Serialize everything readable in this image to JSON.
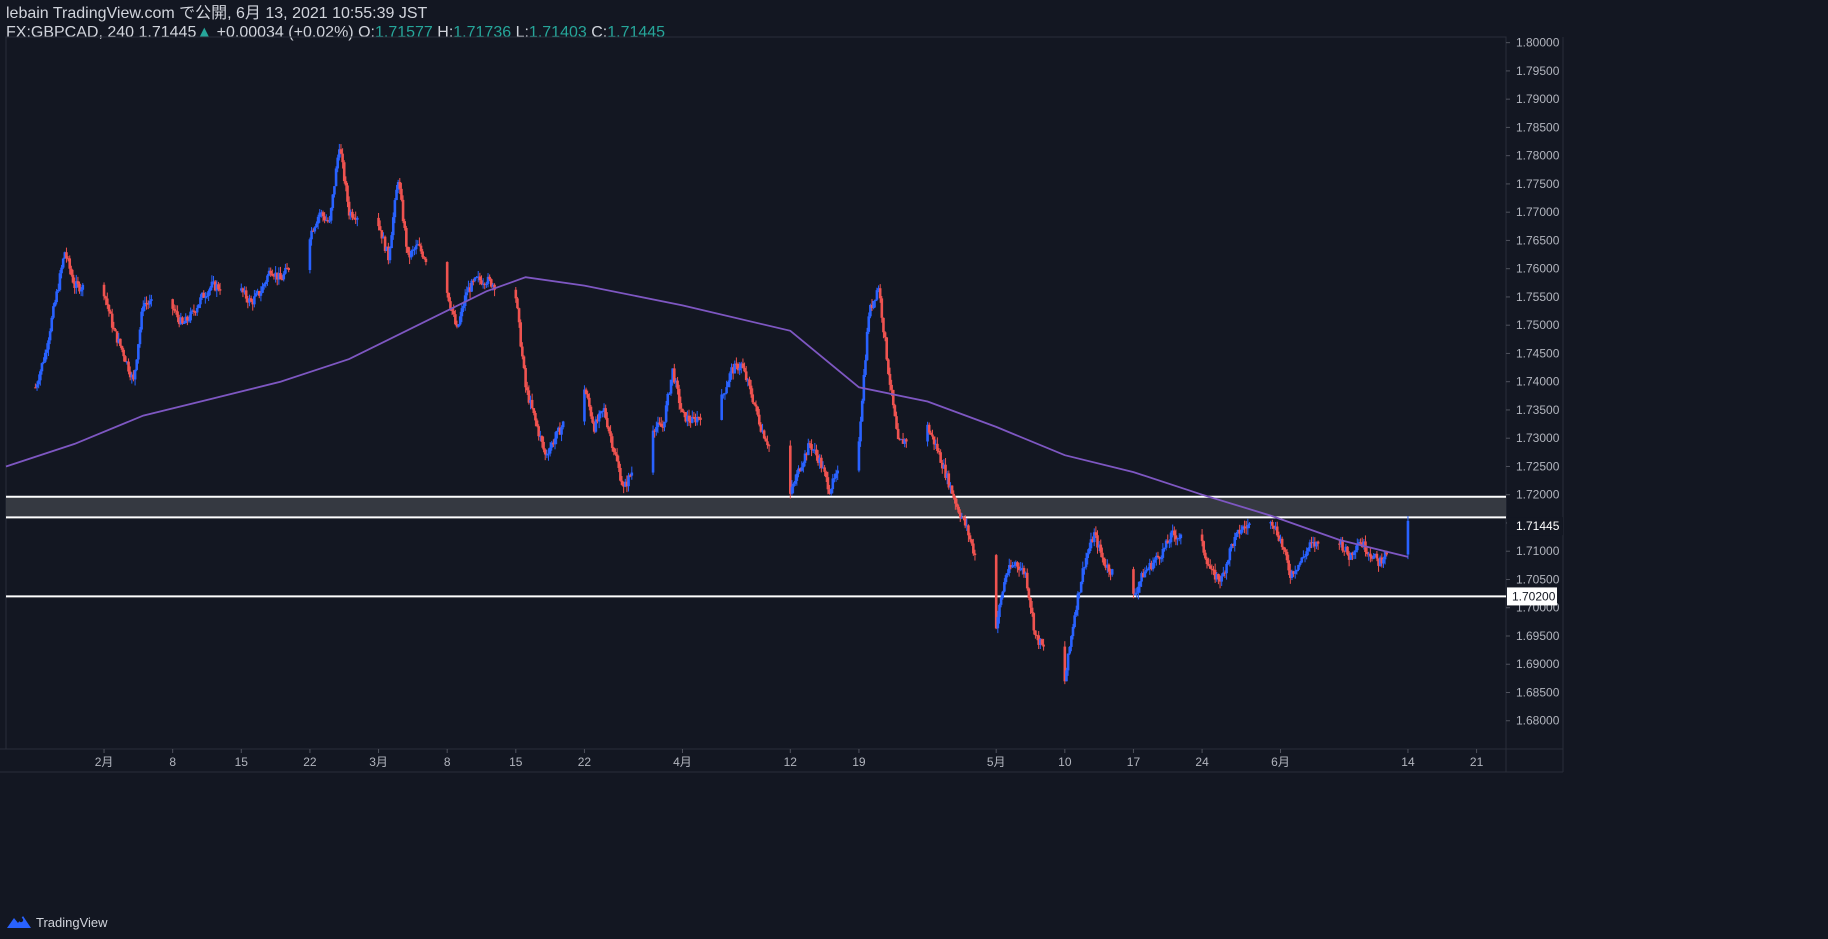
{
  "header": {
    "line1": "lebain TradingView.com で公開, 6月 13, 2021 10:55:39 JST",
    "symbol": "FX:GBPCAD, 240",
    "last": "1.71445",
    "up_arrow": "▲",
    "change": "+0.00034 (+0.02%)",
    "o_label": "O:",
    "o_value": "1.71577",
    "h_label": "H:",
    "h_value": "1.71736",
    "l_label": "L:",
    "l_value": "1.71403",
    "c_label": "C:",
    "c_value": "1.71445"
  },
  "footer": {
    "brand": "TradingView",
    "logo_icon": "tradingview-logo-icon"
  },
  "colors": {
    "background": "#131722",
    "up": "#2962ff",
    "down": "#ef5350",
    "ma": "#7e57c2",
    "level_line": "#ffffff",
    "zone_fill": "#3a3d45",
    "axis_text": "#b2b5be",
    "grid_border": "#2a2e39"
  },
  "chart_data": {
    "type": "candlestick",
    "ylim": [
      1.675,
      1.801
    ],
    "y_ticks": [
      "1.80000",
      "1.79500",
      "1.79000",
      "1.78500",
      "1.78000",
      "1.77500",
      "1.77000",
      "1.76500",
      "1.76000",
      "1.75500",
      "1.75000",
      "1.74500",
      "1.74000",
      "1.73500",
      "1.73000",
      "1.72500",
      "1.72000",
      "1.71500",
      "1.71000",
      "1.70500",
      "1.70000",
      "1.69500",
      "1.69000",
      "1.68500",
      "1.68000"
    ],
    "x_range": [
      "2021-01-22",
      "2021-06-24"
    ],
    "x_ticks": [
      {
        "date": "2021-02-01",
        "label": "2月"
      },
      {
        "date": "2021-02-08",
        "label": "8"
      },
      {
        "date": "2021-02-15",
        "label": "15"
      },
      {
        "date": "2021-02-22",
        "label": "22"
      },
      {
        "date": "2021-03-01",
        "label": "3月"
      },
      {
        "date": "2021-03-08",
        "label": "8"
      },
      {
        "date": "2021-03-15",
        "label": "15"
      },
      {
        "date": "2021-03-22",
        "label": "22"
      },
      {
        "date": "2021-04-01",
        "label": "4月"
      },
      {
        "date": "2021-04-12",
        "label": "12"
      },
      {
        "date": "2021-04-19",
        "label": "19"
      },
      {
        "date": "2021-05-03",
        "label": "5月"
      },
      {
        "date": "2021-05-10",
        "label": "10"
      },
      {
        "date": "2021-05-17",
        "label": "17"
      },
      {
        "date": "2021-05-24",
        "label": "24"
      },
      {
        "date": "2021-06-01",
        "label": "6月"
      },
      {
        "date": "2021-06-14",
        "label": "14"
      },
      {
        "date": "2021-06-21",
        "label": "21"
      }
    ],
    "price_path": [
      [
        "2021-01-25",
        1.739
      ],
      [
        "2021-01-26",
        1.745
      ],
      [
        "2021-01-27",
        1.754
      ],
      [
        "2021-01-28",
        1.763
      ],
      [
        "2021-01-29",
        1.757
      ],
      [
        "2021-02-01",
        1.756
      ],
      [
        "2021-02-02",
        1.749
      ],
      [
        "2021-02-03",
        1.745
      ],
      [
        "2021-02-04",
        1.74
      ],
      [
        "2021-02-05",
        1.754
      ],
      [
        "2021-02-08",
        1.753
      ],
      [
        "2021-02-09",
        1.75
      ],
      [
        "2021-02-10",
        1.752
      ],
      [
        "2021-02-11",
        1.755
      ],
      [
        "2021-02-12",
        1.757
      ],
      [
        "2021-02-15",
        1.756
      ],
      [
        "2021-02-16",
        1.754
      ],
      [
        "2021-02-17",
        1.756
      ],
      [
        "2021-02-18",
        1.76
      ],
      [
        "2021-02-19",
        1.758
      ],
      [
        "2021-02-22",
        1.766
      ],
      [
        "2021-02-23",
        1.77
      ],
      [
        "2021-02-24",
        1.768
      ],
      [
        "2021-02-25",
        1.782
      ],
      [
        "2021-02-26",
        1.77
      ],
      [
        "2021-03-01",
        1.768
      ],
      [
        "2021-03-02",
        1.762
      ],
      [
        "2021-03-03",
        1.776
      ],
      [
        "2021-03-04",
        1.762
      ],
      [
        "2021-03-05",
        1.764
      ],
      [
        "2021-03-08",
        1.756
      ],
      [
        "2021-03-09",
        1.749
      ],
      [
        "2021-03-10",
        1.756
      ],
      [
        "2021-03-11",
        1.758
      ],
      [
        "2021-03-12",
        1.758
      ],
      [
        "2021-03-15",
        1.755
      ],
      [
        "2021-03-16",
        1.739
      ],
      [
        "2021-03-17",
        1.733
      ],
      [
        "2021-03-18",
        1.727
      ],
      [
        "2021-03-19",
        1.73
      ],
      [
        "2021-03-22",
        1.739
      ],
      [
        "2021-03-23",
        1.732
      ],
      [
        "2021-03-24",
        1.735
      ],
      [
        "2021-03-25",
        1.728
      ],
      [
        "2021-03-26",
        1.721
      ],
      [
        "2021-03-29",
        1.732
      ],
      [
        "2021-03-30",
        1.732
      ],
      [
        "2021-03-31",
        1.742
      ],
      [
        "2021-04-01",
        1.734
      ],
      [
        "2021-04-02",
        1.733
      ],
      [
        "2021-04-05",
        1.737
      ],
      [
        "2021-04-06",
        1.742
      ],
      [
        "2021-04-07",
        1.743
      ],
      [
        "2021-04-08",
        1.738
      ],
      [
        "2021-04-09",
        1.732
      ],
      [
        "2021-04-12",
        1.72
      ],
      [
        "2021-04-13",
        1.725
      ],
      [
        "2021-04-14",
        1.729
      ],
      [
        "2021-04-15",
        1.726
      ],
      [
        "2021-04-16",
        1.721
      ],
      [
        "2021-04-19",
        1.73
      ],
      [
        "2021-04-20",
        1.752
      ],
      [
        "2021-04-21",
        1.757
      ],
      [
        "2021-04-22",
        1.742
      ],
      [
        "2021-04-23",
        1.729
      ],
      [
        "2021-04-26",
        1.732
      ],
      [
        "2021-04-27",
        1.728
      ],
      [
        "2021-04-28",
        1.723
      ],
      [
        "2021-04-29",
        1.718
      ],
      [
        "2021-04-30",
        1.714
      ],
      [
        "2021-05-03",
        1.697
      ],
      [
        "2021-05-04",
        1.706
      ],
      [
        "2021-05-05",
        1.708
      ],
      [
        "2021-05-06",
        1.706
      ],
      [
        "2021-05-07",
        1.695
      ],
      [
        "2021-05-10",
        1.687
      ],
      [
        "2021-05-11",
        1.699
      ],
      [
        "2021-05-12",
        1.708
      ],
      [
        "2021-05-13",
        1.713
      ],
      [
        "2021-05-14",
        1.708
      ],
      [
        "2021-05-17",
        1.702
      ],
      [
        "2021-05-18",
        1.706
      ],
      [
        "2021-05-19",
        1.708
      ],
      [
        "2021-05-20",
        1.71
      ],
      [
        "2021-05-21",
        1.713
      ],
      [
        "2021-05-24",
        1.711
      ],
      [
        "2021-05-25",
        1.706
      ],
      [
        "2021-05-26",
        1.705
      ],
      [
        "2021-05-27",
        1.711
      ],
      [
        "2021-05-28",
        1.714
      ],
      [
        "2021-05-31",
        1.716
      ],
      [
        "2021-06-01",
        1.712
      ],
      [
        "2021-06-02",
        1.706
      ],
      [
        "2021-06-03",
        1.708
      ],
      [
        "2021-06-04",
        1.711
      ],
      [
        "2021-06-07",
        1.712
      ],
      [
        "2021-06-08",
        1.709
      ],
      [
        "2021-06-09",
        1.712
      ],
      [
        "2021-06-10",
        1.71
      ],
      [
        "2021-06-11",
        1.708
      ],
      [
        "2021-06-14",
        1.7145
      ]
    ],
    "moving_average": [
      [
        "2021-01-22",
        1.725
      ],
      [
        "2021-01-29",
        1.729
      ],
      [
        "2021-02-05",
        1.734
      ],
      [
        "2021-02-12",
        1.737
      ],
      [
        "2021-02-19",
        1.74
      ],
      [
        "2021-02-26",
        1.744
      ],
      [
        "2021-03-05",
        1.75
      ],
      [
        "2021-03-12",
        1.756
      ],
      [
        "2021-03-16",
        1.7585
      ],
      [
        "2021-03-22",
        1.757
      ],
      [
        "2021-04-01",
        1.7535
      ],
      [
        "2021-04-12",
        1.749
      ],
      [
        "2021-04-19",
        1.739
      ],
      [
        "2021-04-26",
        1.7365
      ],
      [
        "2021-05-03",
        1.732
      ],
      [
        "2021-05-10",
        1.727
      ],
      [
        "2021-05-17",
        1.724
      ],
      [
        "2021-05-24",
        1.72
      ],
      [
        "2021-05-31",
        1.7163
      ],
      [
        "2021-06-07",
        1.712
      ],
      [
        "2021-06-14",
        1.709
      ]
    ],
    "levels": [
      1.71963,
      1.716,
      1.702
    ],
    "zone": [
      1.716,
      1.71963
    ],
    "current_price": "1.71445",
    "marked_level": "1.70200"
  }
}
